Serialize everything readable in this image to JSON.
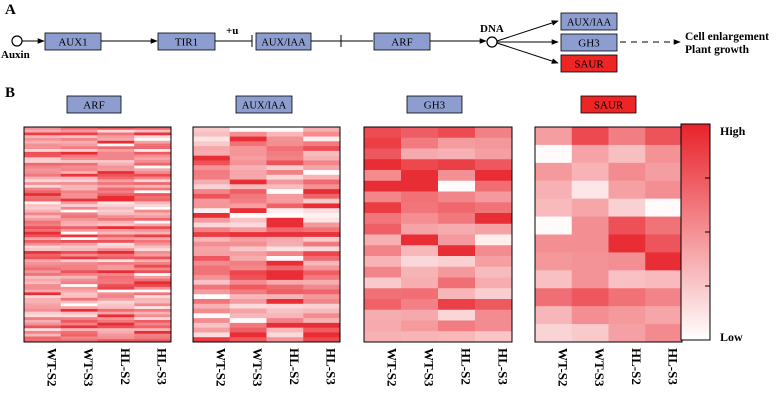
{
  "panel_a": {
    "label": "A",
    "auxin": "Auxin",
    "aux1": "AUX1",
    "tir1": "TIR1",
    "plus_u": "+u",
    "aux_iaa": "AUX/IAA",
    "arf": "ARF",
    "dna": "DNA",
    "targets": [
      "AUX/IAA",
      "GH3",
      "SAUR"
    ],
    "outcome_line1": "Cell enlargement",
    "outcome_line2": "Plant growth"
  },
  "panel_b": {
    "label": "B",
    "scale_high": "High",
    "scale_low": "Low",
    "samples": [
      "WT-S2",
      "WT-S3",
      "HL-S2",
      "HL-S3"
    ],
    "heatmaps": [
      {
        "title": "ARF",
        "highlight": false,
        "rows": 78
      },
      {
        "title": "AUX/IAA",
        "highlight": false,
        "rows": 45
      },
      {
        "title": "GH3",
        "highlight": false,
        "rows": 20
      },
      {
        "title": "SAUR",
        "highlight": true,
        "rows": 12
      }
    ]
  },
  "colors": {
    "node_fill": "#8e9dd0",
    "saur_fill": "#ee2525",
    "heat_low": "#ffffff",
    "heat_high": "#e8222a"
  }
}
